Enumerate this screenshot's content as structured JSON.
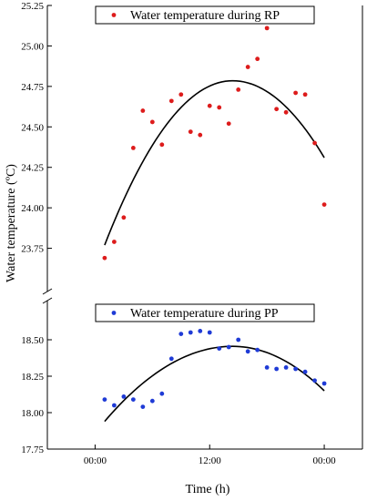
{
  "chart_data": [
    {
      "type": "scatter",
      "panel": "top",
      "ylim": [
        23.5,
        25.25
      ],
      "yticks": [
        "23.75",
        "24.00",
        "24.25",
        "24.50",
        "24.75",
        "25.00",
        "25.25"
      ],
      "color": "#dd1c1c",
      "fit_color": "#000000",
      "legend_position": "top",
      "series": [
        {
          "name": "Water temperature during RP",
          "x": [
            1.0,
            2.0,
            3.0,
            4.0,
            5.0,
            6.0,
            7.0,
            8.0,
            9.0,
            10.0,
            11.0,
            12.0,
            13.0,
            14.0,
            15.0,
            16.0,
            17.0,
            18.0,
            19.0,
            20.0,
            21.0,
            22.0,
            23.0,
            24.0
          ],
          "y": [
            23.69,
            23.79,
            23.94,
            24.37,
            24.6,
            24.53,
            24.39,
            24.66,
            24.7,
            24.47,
            24.45,
            24.63,
            24.62,
            24.52,
            24.73,
            24.87,
            24.92,
            25.11,
            24.61,
            24.59,
            24.71,
            24.7,
            24.4,
            24.02
          ]
        }
      ],
      "fit": {
        "x_start": 1.0,
        "x_end": 24.0,
        "peak_x": 14.4,
        "peak_y": 24.785,
        "start_y": 23.77,
        "end_y": 24.31
      }
    },
    {
      "type": "scatter",
      "panel": "bottom",
      "ylim": [
        17.75,
        18.75
      ],
      "yticks": [
        "17.75",
        "18.00",
        "18.25",
        "18.50"
      ],
      "color": "#1f3bd6",
      "fit_color": "#000000",
      "legend_position": "top",
      "series": [
        {
          "name": "Water temperature during PP",
          "x": [
            1.0,
            2.0,
            3.0,
            4.0,
            5.0,
            6.0,
            7.0,
            8.0,
            9.0,
            10.0,
            11.0,
            12.0,
            13.0,
            14.0,
            15.0,
            16.0,
            17.0,
            18.0,
            19.0,
            20.0,
            21.0,
            22.0,
            23.0,
            24.0
          ],
          "y": [
            18.09,
            18.05,
            18.11,
            18.09,
            18.04,
            18.08,
            18.13,
            18.37,
            18.54,
            18.55,
            18.56,
            18.55,
            18.44,
            18.45,
            18.5,
            18.42,
            18.43,
            18.31,
            18.3,
            18.31,
            18.3,
            18.28,
            18.22,
            18.2
          ]
        }
      ],
      "fit": {
        "x_start": 1.0,
        "x_end": 24.0,
        "peak_x": 14.4,
        "peak_y": 18.455,
        "start_y": 17.94,
        "end_y": 18.15
      }
    }
  ],
  "axes": {
    "xlabel": "Time (h)",
    "ylabel": "Water temperature (ºC)",
    "xlim": [
      -5.0,
      28.0
    ],
    "xticks": [
      {
        "value": 0.0,
        "label": "00:00"
      },
      {
        "value": 12.0,
        "label": "12:00"
      },
      {
        "value": 24.0,
        "label": "00:00"
      }
    ]
  }
}
